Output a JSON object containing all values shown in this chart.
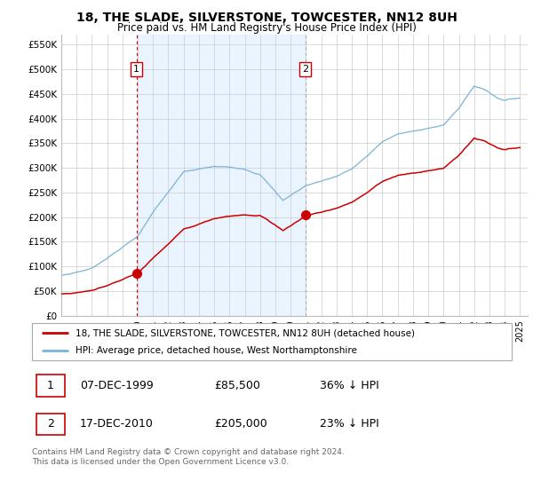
{
  "title": "18, THE SLADE, SILVERSTONE, TOWCESTER, NN12 8UH",
  "subtitle": "Price paid vs. HM Land Registry's House Price Index (HPI)",
  "hpi_color": "#7ab4d8",
  "price_color": "#cc0000",
  "vline1_color": "#cc0000",
  "vline1_style": "--",
  "vline2_color": "#aaaaaa",
  "vline2_style": "--",
  "bg_shade_color": "#ddeeff",
  "purchase1_year": 1999.92,
  "purchase1_price": 85500,
  "purchase1_label": "1",
  "purchase2_year": 2010.96,
  "purchase2_price": 205000,
  "purchase2_label": "2",
  "legend_line1": "18, THE SLADE, SILVERSTONE, TOWCESTER, NN12 8UH (detached house)",
  "legend_line2": "HPI: Average price, detached house, West Northamptonshire",
  "table_row1_label": "1",
  "table_row1_date": "07-DEC-1999",
  "table_row1_price": "£85,500",
  "table_row1_hpi": "36% ↓ HPI",
  "table_row2_label": "2",
  "table_row2_date": "17-DEC-2010",
  "table_row2_price": "£205,000",
  "table_row2_hpi": "23% ↓ HPI",
  "footer": "Contains HM Land Registry data © Crown copyright and database right 2024.\nThis data is licensed under the Open Government Licence v3.0.",
  "ylim": [
    0,
    570000
  ],
  "yticks": [
    0,
    50000,
    100000,
    150000,
    200000,
    250000,
    300000,
    350000,
    400000,
    450000,
    500000,
    550000
  ],
  "ytick_labels": [
    "£0",
    "£50K",
    "£100K",
    "£150K",
    "£200K",
    "£250K",
    "£300K",
    "£350K",
    "£400K",
    "£450K",
    "£500K",
    "£550K"
  ],
  "xlim_start": 1995.0,
  "xlim_end": 2025.5
}
